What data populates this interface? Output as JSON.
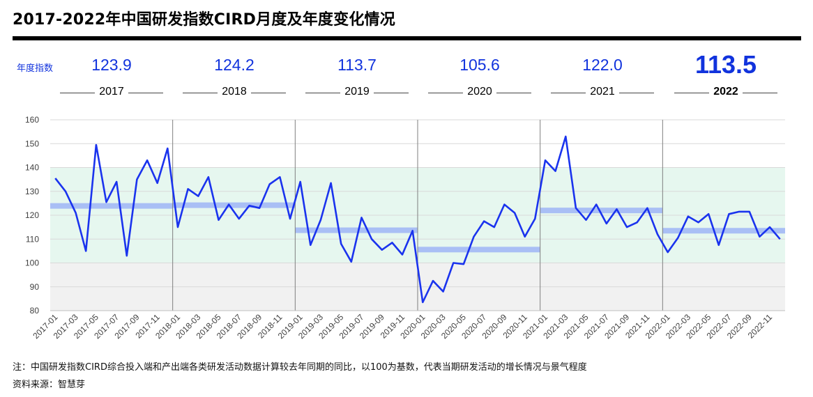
{
  "title": "2017-2022年中国研发指数CIRD月度及年度变化情况",
  "annual_label": "年度指数",
  "annual": [
    {
      "year": "2017",
      "value": "123.9"
    },
    {
      "year": "2018",
      "value": "124.2"
    },
    {
      "year": "2019",
      "value": "113.7"
    },
    {
      "year": "2020",
      "value": "105.6"
    },
    {
      "year": "2021",
      "value": "122.0"
    },
    {
      "year": "2022",
      "value": "113.5"
    }
  ],
  "footnote": "注：中国研发指数CIRD综合投入端和产出端各类研发活动数据计算较去年同期的同比，以100为基数，代表当期研发活动的增长情况与景气程度",
  "source": "资料来源：智慧芽",
  "colors": {
    "line": "#1a33ee",
    "annual_bar": "#a9bff5",
    "band_high": "#e6f7ef",
    "band_low": "#f1f1f1",
    "accent_text": "#1133dd"
  },
  "chart_data": {
    "type": "line",
    "ylim": [
      80,
      160
    ],
    "yticks": [
      "80",
      "90",
      "100",
      "110",
      "120",
      "130",
      "140",
      "150",
      "160"
    ],
    "x": [
      "2017-01",
      "2017-02",
      "2017-03",
      "2017-04",
      "2017-05",
      "2017-06",
      "2017-07",
      "2017-08",
      "2017-09",
      "2017-10",
      "2017-11",
      "2017-12",
      "2018-01",
      "2018-02",
      "2018-03",
      "2018-04",
      "2018-05",
      "2018-06",
      "2018-07",
      "2018-08",
      "2018-09",
      "2018-10",
      "2018-11",
      "2018-12",
      "2019-01",
      "2019-02",
      "2019-03",
      "2019-04",
      "2019-05",
      "2019-06",
      "2019-07",
      "2019-08",
      "2019-09",
      "2019-10",
      "2019-11",
      "2019-12",
      "2020-01",
      "2020-02",
      "2020-03",
      "2020-04",
      "2020-05",
      "2020-06",
      "2020-07",
      "2020-08",
      "2020-09",
      "2020-10",
      "2020-11",
      "2020-12",
      "2021-01",
      "2021-02",
      "2021-03",
      "2021-04",
      "2021-05",
      "2021-06",
      "2021-07",
      "2021-08",
      "2021-09",
      "2021-10",
      "2021-11",
      "2021-12",
      "2022-01",
      "2022-02",
      "2022-03",
      "2022-04",
      "2022-05",
      "2022-06",
      "2022-07",
      "2022-08",
      "2022-09",
      "2022-10",
      "2022-11",
      "2022-12"
    ],
    "xtick_labels": [
      "2017-01",
      "2017-03",
      "2017-05",
      "2017-07",
      "2017-09",
      "2017-11",
      "2018-01",
      "2018-03",
      "2018-05",
      "2018-07",
      "2018-09",
      "2018-11",
      "2019-01",
      "2019-03",
      "2019-05",
      "2019-07",
      "2019-09",
      "2019-11",
      "2020-01",
      "2020-03",
      "2020-05",
      "2020-07",
      "2020-09",
      "2020-11",
      "2021-01",
      "2021-03",
      "2021-05",
      "2021-07",
      "2021-09",
      "2021-11",
      "2022-01",
      "2022-03",
      "2022-05",
      "2022-07",
      "2022-09",
      "2022-11"
    ],
    "values": [
      135.5,
      130,
      121,
      105,
      149.5,
      125.5,
      134,
      103,
      135,
      143,
      133.5,
      148,
      115,
      131,
      128,
      136,
      118,
      124.5,
      118.5,
      124,
      123,
      133,
      136,
      118.5,
      134,
      107.5,
      118,
      133.5,
      108,
      100.5,
      119,
      110,
      105.5,
      108.5,
      103.5,
      113.5,
      83.5,
      92.5,
      88,
      100,
      99.5,
      111,
      117.5,
      115,
      124.5,
      121,
      111,
      118.5,
      143,
      138.5,
      153,
      123,
      118,
      124.5,
      116.5,
      122.5,
      115,
      117,
      123,
      112,
      104.5,
      110.5,
      119.5,
      117,
      120.5,
      107.5,
      120.5,
      121.5,
      121.5,
      111,
      115,
      110
    ],
    "annual_levels": [
      123.9,
      124.2,
      113.7,
      105.6,
      122.0,
      113.5
    ],
    "bands": [
      {
        "from": 100,
        "to": 140,
        "color": "#e6f7ef"
      },
      {
        "from": 80,
        "to": 100,
        "color": "#f1f1f1"
      }
    ]
  }
}
